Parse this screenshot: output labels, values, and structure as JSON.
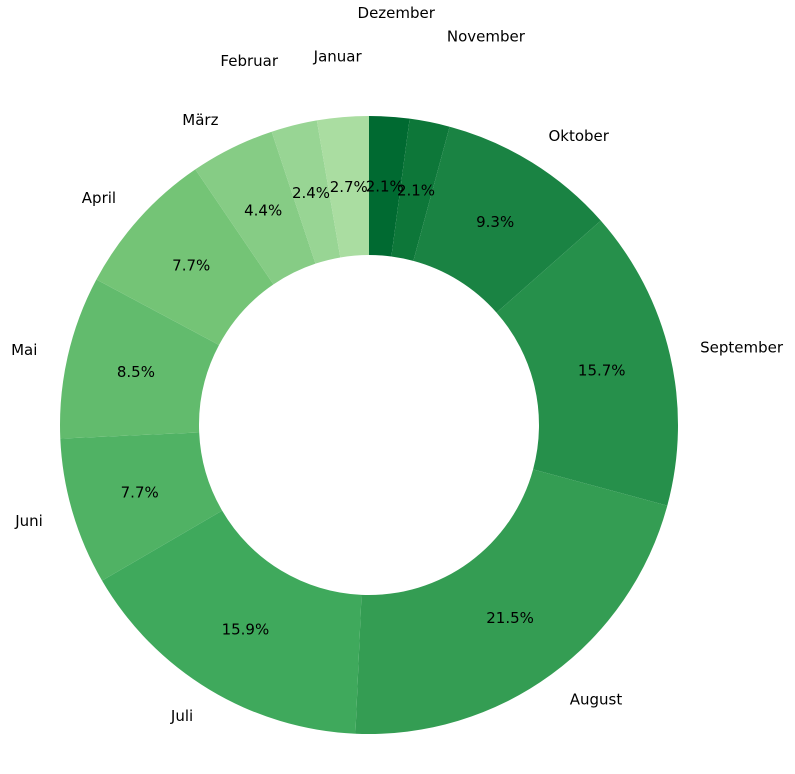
{
  "chart_data": {
    "type": "pie",
    "donut": true,
    "title": "",
    "start": "top",
    "direction": "clockwise-from-December",
    "categories": [
      "Januar",
      "Februar",
      "März",
      "April",
      "Mai",
      "Juni",
      "Juli",
      "August",
      "September",
      "Oktober",
      "November",
      "Dezember"
    ],
    "values": [
      2.7,
      2.4,
      4.4,
      7.7,
      8.5,
      7.7,
      15.9,
      21.5,
      15.7,
      9.3,
      2.1,
      2.1
    ],
    "value_labels": [
      "2.7%",
      "2.4%",
      "4.4%",
      "7.7%",
      "8.5%",
      "7.7%",
      "15.9%",
      "21.5%",
      "15.7%",
      "9.3%",
      "2.1%",
      "2.1%"
    ],
    "colors": [
      "#aadda1",
      "#98d594",
      "#86cc85",
      "#74c476",
      "#62bb6d",
      "#50b264",
      "#3fa95c",
      "#349d53",
      "#26904b",
      "#1a8343",
      "#0d7739",
      "#006a31"
    ],
    "legend": "none"
  }
}
